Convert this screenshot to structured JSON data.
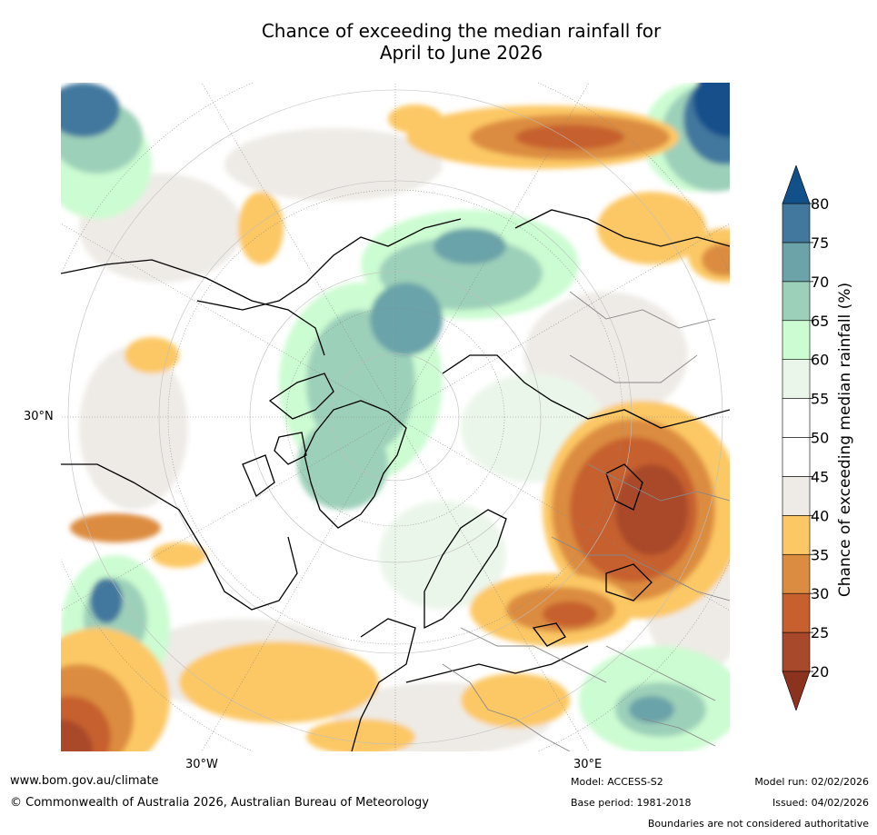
{
  "title": {
    "line1": "Chance of exceeding the median rainfall for",
    "line2": "April to June 2026"
  },
  "map": {
    "projection": "north polar stereographic",
    "lat_label": "30°N",
    "lon_labels": [
      "30°W",
      "30°E"
    ],
    "colors": {
      "ocean_neutral": "#ffffff",
      "coast": "#000000",
      "borders": "#888888"
    }
  },
  "colorbar": {
    "label": "Chance of exceeding median rainfall (%)",
    "ticks": [
      "20",
      "25",
      "30",
      "35",
      "40",
      "45",
      "50",
      "55",
      "60",
      "65",
      "70",
      "75",
      "80"
    ],
    "bins": [
      {
        "from": 20,
        "to": 25,
        "color": "#a9492b"
      },
      {
        "from": 25,
        "to": 30,
        "color": "#c6602f"
      },
      {
        "from": 30,
        "to": 35,
        "color": "#dc8c40"
      },
      {
        "from": 35,
        "to": 40,
        "color": "#fcc865"
      },
      {
        "from": 40,
        "to": 45,
        "color": "#eeebe6"
      },
      {
        "from": 45,
        "to": 50,
        "color": "#ffffff"
      },
      {
        "from": 50,
        "to": 55,
        "color": "#ffffff"
      },
      {
        "from": 55,
        "to": 60,
        "color": "#ebf6ea"
      },
      {
        "from": 60,
        "to": 65,
        "color": "#ccfcd1"
      },
      {
        "from": 65,
        "to": 70,
        "color": "#9dd0b9"
      },
      {
        "from": 70,
        "to": 75,
        "color": "#6ba3a9"
      },
      {
        "from": 75,
        "to": 80,
        "color": "#42789e"
      }
    ],
    "under_color": "#8c3320",
    "over_color": "#12508a"
  },
  "footer": {
    "website": "www.bom.gov.au/climate",
    "copyright": "© Commonwealth of Australia 2026, Australian Bureau of Meteorology",
    "model": "Model: ACCESS-S2",
    "base_period": "Base period: 1981-2018",
    "model_run": "Model run: 02/02/2026",
    "issued": "Issued: 04/02/2026",
    "disclaimer": "Boundaries are not considered authoritative"
  }
}
